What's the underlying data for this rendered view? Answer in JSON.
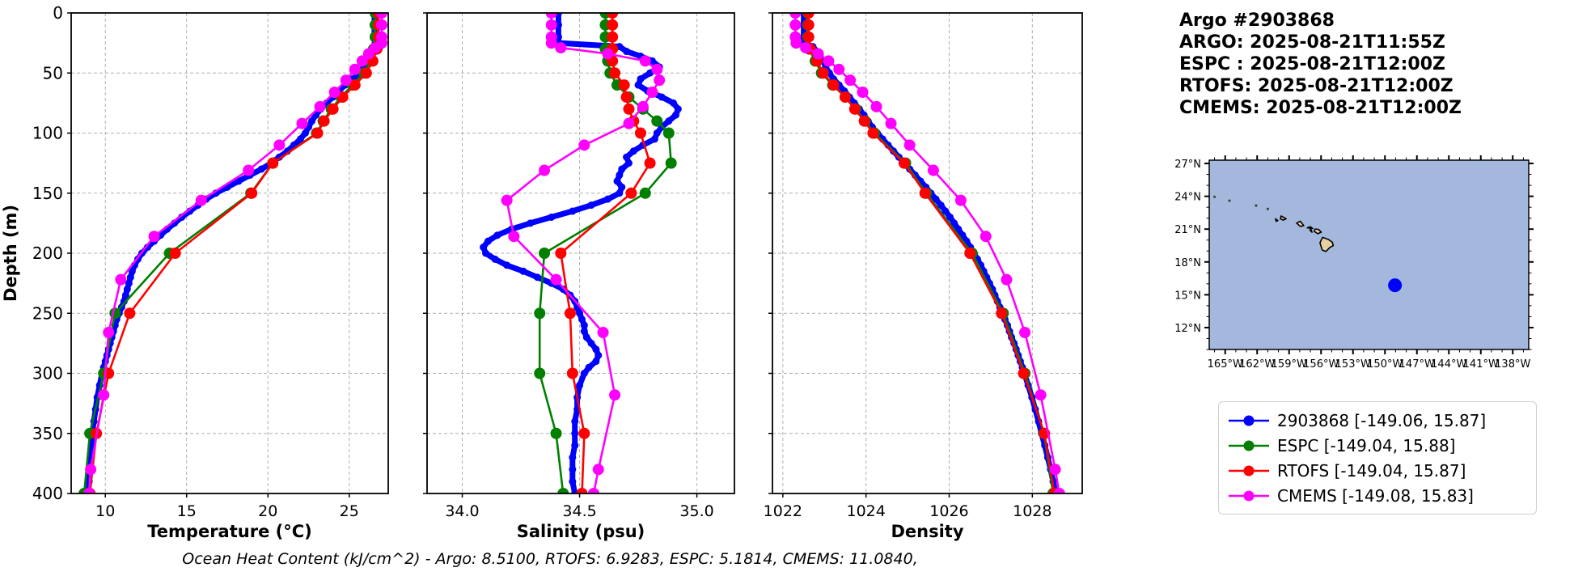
{
  "info_block": {
    "lines": [
      "Argo #2903868",
      "ARGO: 2025-08-21T11:55Z",
      "ESPC : 2025-08-21T12:00Z",
      "RTOFS: 2025-08-21T12:00Z",
      "CMEMS: 2025-08-21T12:00Z"
    ]
  },
  "caption": "Ocean Heat Content (kJ/cm^2) - Argo: 8.5100,  RTOFS: 6.9283,  ESPC: 5.1814,  CMEMS: 11.0840,",
  "ocean_heat_content": {
    "units": "kJ/cm^2",
    "Argo": 8.51,
    "RTOFS": 6.9283,
    "ESPC": 5.1814,
    "CMEMS": 11.084
  },
  "legend": {
    "items": [
      {
        "label": "2903868 [-149.06, 15.87]",
        "color": "#0000ff"
      },
      {
        "label": "ESPC [-149.04, 15.88]",
        "color": "#007f00"
      },
      {
        "label": "RTOFS [-149.04, 15.87]",
        "color": "#ff0000"
      },
      {
        "label": "CMEMS [-149.08, 15.83]",
        "color": "#ff00ff"
      }
    ]
  },
  "map": {
    "lon_range": [
      -166.5,
      -136.5
    ],
    "lat_range": [
      10.0,
      27.3
    ],
    "xticks": [
      -165,
      -162,
      -159,
      -156,
      -153,
      -150,
      -147,
      -144,
      -141,
      -138
    ],
    "xtick_labels": [
      "165°W",
      "162°W",
      "159°W",
      "156°W",
      "153°W",
      "150°W",
      "147°W",
      "144°W",
      "141°W",
      "138°W"
    ],
    "yticks": [
      27,
      24,
      21,
      18,
      15,
      12
    ],
    "ytick_labels": [
      "27°N",
      "24°N",
      "21°N",
      "18°N",
      "15°N",
      "12°N"
    ],
    "ocean_color": "#a3b8dc",
    "land_color": "#e8cfa3",
    "float_marker": {
      "lon": -149.06,
      "lat": 15.87,
      "color": "#0000ff"
    },
    "islands": [
      [
        [
          -155.9,
          19.1
        ],
        [
          -155.55,
          18.95
        ],
        [
          -155.2,
          19.3
        ],
        [
          -154.85,
          19.5
        ],
        [
          -154.95,
          19.8
        ],
        [
          -155.3,
          20.05
        ],
        [
          -155.85,
          20.25
        ],
        [
          -156.1,
          19.75
        ]
      ],
      [
        [
          -156.65,
          20.8
        ],
        [
          -156.3,
          20.58
        ],
        [
          -155.98,
          20.72
        ],
        [
          -156.25,
          20.98
        ],
        [
          -156.55,
          21.0
        ]
      ],
      [
        [
          -157.3,
          21.12
        ],
        [
          -156.78,
          21.05
        ],
        [
          -157.0,
          21.22
        ]
      ],
      [
        [
          -157.05,
          20.92
        ],
        [
          -156.85,
          20.72
        ],
        [
          -156.95,
          20.98
        ]
      ],
      [
        [
          -158.3,
          21.55
        ],
        [
          -157.95,
          21.25
        ],
        [
          -157.62,
          21.32
        ],
        [
          -157.95,
          21.72
        ]
      ],
      [
        [
          -159.75,
          22.2
        ],
        [
          -159.28,
          21.95
        ],
        [
          -159.55,
          21.82
        ],
        [
          -159.82,
          21.95
        ]
      ],
      [
        [
          -160.28,
          21.95
        ],
        [
          -160.05,
          21.78
        ],
        [
          -160.22,
          21.72
        ]
      ]
    ],
    "islets": [
      [
        -166.0,
        23.95
      ],
      [
        -164.6,
        23.6
      ],
      [
        -162.1,
        23.15
      ],
      [
        -161.0,
        22.85
      ]
    ]
  },
  "chart_data": [
    {
      "type": "line",
      "xlabel": "Temperature (°C)",
      "ylabel": "Depth (m)",
      "xlim": [
        7.9,
        27.4
      ],
      "xticks": [
        10,
        15,
        20,
        25
      ],
      "ylim": [
        400,
        0
      ],
      "yticks": [
        0,
        50,
        100,
        150,
        200,
        250,
        300,
        350,
        400
      ],
      "grid": true,
      "series": [
        {
          "name": "2903868",
          "color": "#0000ff",
          "lw": 7,
          "mr": 4.5,
          "depths_ref": "argo",
          "values": [
            26.55,
            26.55,
            26.55,
            26.6,
            26.9,
            26.6,
            26.35,
            26.15,
            25.9,
            25.6,
            25.2,
            24.75,
            24.35,
            24.0,
            23.6,
            23.25,
            22.95,
            22.7,
            22.5,
            22.3,
            22.0,
            21.6,
            21.2,
            20.7,
            20.2,
            19.6,
            18.9,
            18.2,
            17.5,
            16.8,
            16.2,
            15.7,
            15.2,
            14.7,
            14.25,
            13.8,
            13.4,
            13.0,
            12.6,
            12.25,
            12.0,
            11.8,
            11.65,
            11.55,
            11.45,
            11.35,
            11.25,
            11.15,
            11.0,
            10.85,
            10.7,
            10.6,
            10.5,
            10.4,
            10.3,
            10.2,
            10.1,
            10.0,
            9.9,
            9.8,
            9.65,
            9.5,
            9.4,
            9.3,
            9.2,
            9.15,
            9.1,
            9.05,
            9.0,
            8.95
          ]
        },
        {
          "name": "ESPC",
          "color": "#007f00",
          "lw": 2.6,
          "mr": 7,
          "depths_ref": "hycom",
          "values": [
            26.6,
            26.6,
            26.6,
            26.5,
            26.3,
            25.9,
            25.2,
            24.5,
            23.9,
            23.4,
            23.0,
            20.3,
            18.95,
            13.95,
            10.6,
            9.9,
            9.05,
            8.7
          ]
        },
        {
          "name": "RTOFS",
          "color": "#ff0000",
          "lw": 2.6,
          "mr": 7,
          "depths_ref": "hycom",
          "values": [
            26.8,
            26.8,
            26.8,
            26.7,
            26.45,
            26.05,
            25.35,
            24.6,
            24.0,
            23.45,
            23.05,
            20.3,
            19.0,
            14.3,
            11.5,
            10.2,
            9.45,
            9.05
          ]
        },
        {
          "name": "CMEMS",
          "color": "#ff00ff",
          "lw": 2.6,
          "mr": 7,
          "depths_ref": "cmems",
          "values": [
            27.0,
            27.0,
            27.0,
            27.0,
            26.6,
            26.2,
            25.8,
            25.35,
            24.8,
            24.1,
            23.2,
            22.1,
            20.7,
            18.8,
            15.9,
            13.0,
            10.95,
            10.2,
            9.9,
            9.1,
            9.0
          ]
        }
      ]
    },
    {
      "type": "line",
      "xlabel": "Salinity (psu)",
      "xlim": [
        33.85,
        35.16
      ],
      "xticks": [
        34.0,
        34.5,
        35.0
      ],
      "xtick_labels": [
        "34.0",
        "34.5",
        "35.0"
      ],
      "ylim": [
        400,
        0
      ],
      "yticks": [
        0,
        50,
        100,
        150,
        200,
        250,
        300,
        350,
        400
      ],
      "grid": true,
      "series": [
        {
          "name": "2903868",
          "color": "#0000ff",
          "lw": 7,
          "mr": 4.5,
          "depths_ref": "argo",
          "values": [
            34.41,
            34.41,
            34.41,
            34.41,
            34.67,
            34.7,
            34.76,
            34.81,
            34.84,
            34.8,
            34.76,
            34.75,
            34.79,
            34.85,
            34.9,
            34.92,
            34.91,
            34.88,
            34.85,
            34.83,
            34.82,
            34.77,
            34.73,
            34.7,
            34.71,
            34.68,
            34.67,
            34.66,
            34.68,
            34.67,
            34.62,
            34.55,
            34.47,
            34.38,
            34.29,
            34.21,
            34.15,
            34.11,
            34.09,
            34.1,
            34.14,
            34.19,
            34.26,
            34.32,
            34.38,
            34.43,
            34.46,
            34.48,
            34.49,
            34.5,
            34.51,
            34.52,
            34.52,
            34.53,
            34.55,
            34.57,
            34.58,
            34.57,
            34.54,
            34.52,
            34.5,
            34.49,
            34.49,
            34.48,
            34.48,
            34.48,
            34.47,
            34.47,
            34.47,
            34.48
          ]
        },
        {
          "name": "ESPC",
          "color": "#007f00",
          "lw": 2.6,
          "mr": 7,
          "depths_ref": "hycom",
          "values": [
            34.61,
            34.61,
            34.61,
            34.61,
            34.62,
            34.63,
            34.66,
            34.71,
            34.77,
            34.83,
            34.88,
            34.89,
            34.78,
            34.35,
            34.33,
            34.33,
            34.4,
            34.43
          ]
        },
        {
          "name": "RTOFS",
          "color": "#ff0000",
          "lw": 2.6,
          "mr": 7,
          "depths_ref": "hycom",
          "values": [
            34.64,
            34.64,
            34.64,
            34.64,
            34.64,
            34.65,
            34.69,
            34.7,
            34.71,
            34.73,
            34.76,
            34.8,
            34.72,
            34.42,
            34.46,
            34.47,
            34.52,
            34.51
          ]
        },
        {
          "name": "CMEMS",
          "color": "#ff00ff",
          "lw": 2.6,
          "mr": 7,
          "depths_ref": "cmems",
          "values": [
            34.38,
            34.38,
            34.38,
            34.38,
            34.42,
            34.62,
            34.78,
            34.83,
            34.84,
            34.81,
            34.77,
            34.71,
            34.52,
            34.35,
            34.19,
            34.22,
            34.4,
            34.6,
            34.65,
            34.58,
            34.56
          ]
        }
      ]
    },
    {
      "type": "line",
      "xlabel": "Density",
      "xlim": [
        1021.75,
        1029.2
      ],
      "xticks": [
        1022,
        1024,
        1026,
        1028
      ],
      "ylim": [
        400,
        0
      ],
      "yticks": [
        0,
        50,
        100,
        150,
        200,
        250,
        300,
        350,
        400
      ],
      "grid": true,
      "series": [
        {
          "name": "2903868",
          "color": "#0000ff",
          "lw": 7,
          "mr": 4.5,
          "depths_ref": "argo",
          "values": [
            1022.5,
            1022.5,
            1022.5,
            1022.52,
            1022.72,
            1022.82,
            1022.9,
            1022.97,
            1023.03,
            1023.12,
            1023.22,
            1023.35,
            1023.48,
            1023.6,
            1023.72,
            1023.84,
            1023.95,
            1024.05,
            1024.15,
            1024.27,
            1024.4,
            1024.53,
            1024.66,
            1024.79,
            1024.92,
            1025.05,
            1025.18,
            1025.31,
            1025.44,
            1025.56,
            1025.68,
            1025.8,
            1025.91,
            1026.02,
            1026.12,
            1026.22,
            1026.32,
            1026.42,
            1026.51,
            1026.6,
            1026.68,
            1026.76,
            1026.83,
            1026.9,
            1026.97,
            1027.04,
            1027.1,
            1027.16,
            1027.22,
            1027.28,
            1027.34,
            1027.4,
            1027.45,
            1027.5,
            1027.56,
            1027.61,
            1027.66,
            1027.71,
            1027.76,
            1027.81,
            1027.9,
            1027.99,
            1028.07,
            1028.15,
            1028.22,
            1028.3,
            1028.37,
            1028.44,
            1028.5,
            1028.56
          ]
        },
        {
          "name": "ESPC",
          "color": "#007f00",
          "lw": 2.6,
          "mr": 7,
          "depths_ref": "hycom",
          "values": [
            1022.6,
            1022.6,
            1022.6,
            1022.63,
            1022.78,
            1022.93,
            1023.2,
            1023.5,
            1023.75,
            1023.98,
            1024.2,
            1024.95,
            1025.45,
            1026.55,
            1027.3,
            1027.82,
            1028.28,
            1028.5
          ]
        },
        {
          "name": "RTOFS",
          "color": "#ff0000",
          "lw": 2.6,
          "mr": 7,
          "depths_ref": "hycom",
          "values": [
            1022.62,
            1022.62,
            1022.62,
            1022.66,
            1022.82,
            1022.97,
            1023.22,
            1023.5,
            1023.73,
            1023.96,
            1024.17,
            1024.92,
            1025.42,
            1026.5,
            1027.26,
            1027.79,
            1028.29,
            1028.53
          ]
        },
        {
          "name": "CMEMS",
          "color": "#ff00ff",
          "lw": 2.6,
          "mr": 7,
          "depths_ref": "cmems",
          "values": [
            1022.3,
            1022.3,
            1022.3,
            1022.32,
            1022.55,
            1022.85,
            1023.1,
            1023.35,
            1023.62,
            1023.92,
            1024.25,
            1024.6,
            1025.05,
            1025.62,
            1026.28,
            1026.88,
            1027.38,
            1027.82,
            1028.2,
            1028.55,
            1028.65
          ]
        }
      ]
    }
  ],
  "depths": {
    "argo": [
      0,
      10,
      20,
      25,
      28,
      32,
      36,
      40,
      45,
      50,
      55,
      60,
      65,
      70,
      75,
      80,
      85,
      90,
      95,
      100,
      105,
      110,
      115,
      120,
      125,
      130,
      135,
      140,
      145,
      150,
      155,
      160,
      165,
      170,
      175,
      180,
      185,
      190,
      195,
      200,
      205,
      210,
      215,
      220,
      225,
      230,
      235,
      240,
      245,
      250,
      255,
      260,
      265,
      270,
      275,
      280,
      285,
      290,
      295,
      300,
      310,
      320,
      330,
      340,
      350,
      360,
      370,
      380,
      390,
      400
    ],
    "hycom": [
      0,
      10,
      20,
      30,
      40,
      50,
      60,
      70,
      80,
      90,
      100,
      125,
      150,
      200,
      250,
      300,
      350,
      400
    ],
    "cmems": [
      0,
      10,
      20,
      25,
      29,
      34,
      40,
      47,
      56,
      66,
      78,
      92,
      110,
      131,
      156,
      186,
      222,
      266,
      318,
      380,
      400
    ]
  }
}
